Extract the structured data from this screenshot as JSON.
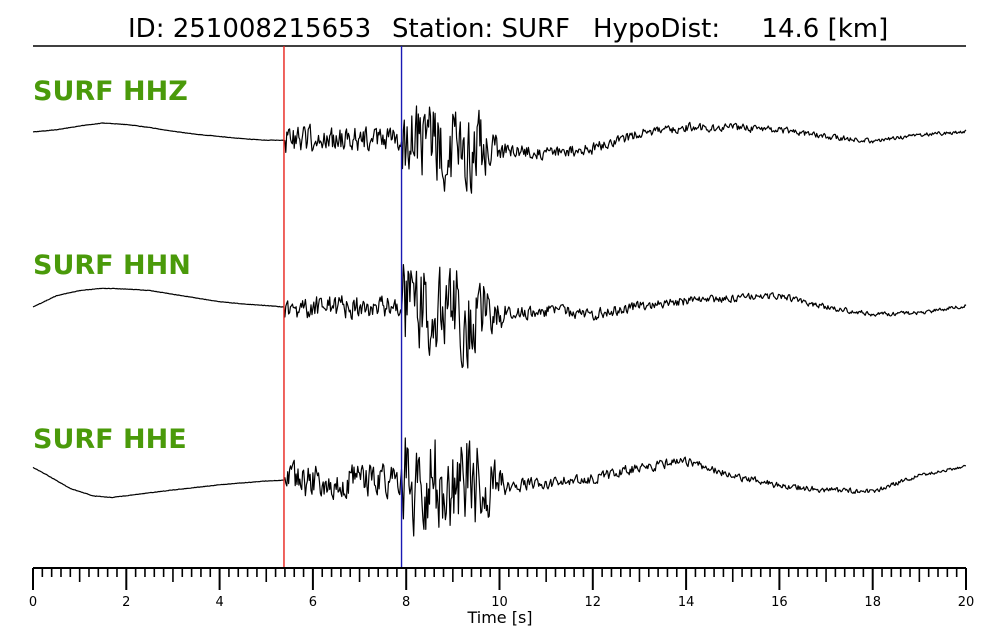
{
  "title": {
    "id_text": "ID: 251008215653",
    "station_text": "Station: SURF",
    "hypodist_text": "HypoDist:     14.6 [km]"
  },
  "chart_data": {
    "type": "line",
    "xlabel": "Time [s]",
    "xlim": [
      0,
      20
    ],
    "x_ticks": [
      0,
      2,
      4,
      6,
      8,
      10,
      12,
      14,
      16,
      18,
      20
    ],
    "minor_tick_step": 0.2,
    "grid": false,
    "legend": "none",
    "p_pick_time": 5.38,
    "s_pick_time": 7.9,
    "p_pick_color": "#e8221b",
    "s_pick_color": "#1a1ab4",
    "trace_color": "#000000",
    "label_color": "#4a9a0a",
    "series": [
      {
        "name": "SURF HHZ",
        "points": [
          [
            0,
            0.0
          ],
          [
            0.5,
            0.03
          ],
          [
            1.0,
            0.08
          ],
          [
            1.5,
            0.12
          ],
          [
            2.0,
            0.1
          ],
          [
            2.5,
            0.06
          ],
          [
            3.0,
            0.01
          ],
          [
            3.5,
            -0.03
          ],
          [
            4.0,
            -0.06
          ],
          [
            4.5,
            -0.09
          ],
          [
            5.0,
            -0.11
          ],
          [
            5.38,
            -0.11
          ]
        ],
        "onset_amp": 0.26,
        "s_amp": 0.72,
        "coda": [
          [
            10.2,
            -0.25
          ],
          [
            11.0,
            -0.28
          ],
          [
            12.0,
            -0.22
          ],
          [
            13.0,
            -0.02
          ],
          [
            14.0,
            0.06
          ],
          [
            15.0,
            0.06
          ],
          [
            16.0,
            0.03
          ],
          [
            17.0,
            -0.06
          ],
          [
            18.0,
            -0.12
          ],
          [
            19.0,
            -0.04
          ],
          [
            20.0,
            0.0
          ]
        ]
      },
      {
        "name": "SURF HHN",
        "points": [
          [
            0,
            0.0
          ],
          [
            0.5,
            0.15
          ],
          [
            1.0,
            0.22
          ],
          [
            1.5,
            0.25
          ],
          [
            2.0,
            0.24
          ],
          [
            2.5,
            0.22
          ],
          [
            3.0,
            0.17
          ],
          [
            3.5,
            0.12
          ],
          [
            4.0,
            0.07
          ],
          [
            4.5,
            0.04
          ],
          [
            5.0,
            0.02
          ],
          [
            5.38,
            0.0
          ]
        ],
        "onset_amp": 0.22,
        "s_amp": 0.85,
        "coda": [
          [
            10.2,
            -0.1
          ],
          [
            11.0,
            -0.05
          ],
          [
            12.0,
            -0.1
          ],
          [
            13.0,
            0.02
          ],
          [
            14.0,
            0.08
          ],
          [
            15.0,
            0.12
          ],
          [
            16.0,
            0.15
          ],
          [
            17.0,
            0.0
          ],
          [
            18.0,
            -0.1
          ],
          [
            19.0,
            -0.08
          ],
          [
            20.0,
            0.02
          ]
        ]
      },
      {
        "name": "SURF HHE",
        "points": [
          [
            0,
            0.1
          ],
          [
            0.3,
            0.0
          ],
          [
            0.8,
            -0.18
          ],
          [
            1.3,
            -0.28
          ],
          [
            1.7,
            -0.3
          ],
          [
            2.2,
            -0.26
          ],
          [
            3.0,
            -0.2
          ],
          [
            4.0,
            -0.13
          ],
          [
            5.0,
            -0.08
          ],
          [
            5.38,
            -0.07
          ]
        ],
        "onset_amp": 0.32,
        "s_amp": 0.9,
        "coda": [
          [
            10.2,
            -0.15
          ],
          [
            11.0,
            -0.1
          ],
          [
            12.0,
            -0.05
          ],
          [
            13.0,
            0.1
          ],
          [
            14.0,
            0.18
          ],
          [
            15.0,
            0.0
          ],
          [
            16.0,
            -0.15
          ],
          [
            17.0,
            -0.2
          ],
          [
            18.0,
            -0.22
          ],
          [
            19.0,
            0.0
          ],
          [
            20.0,
            0.1
          ]
        ]
      }
    ]
  }
}
